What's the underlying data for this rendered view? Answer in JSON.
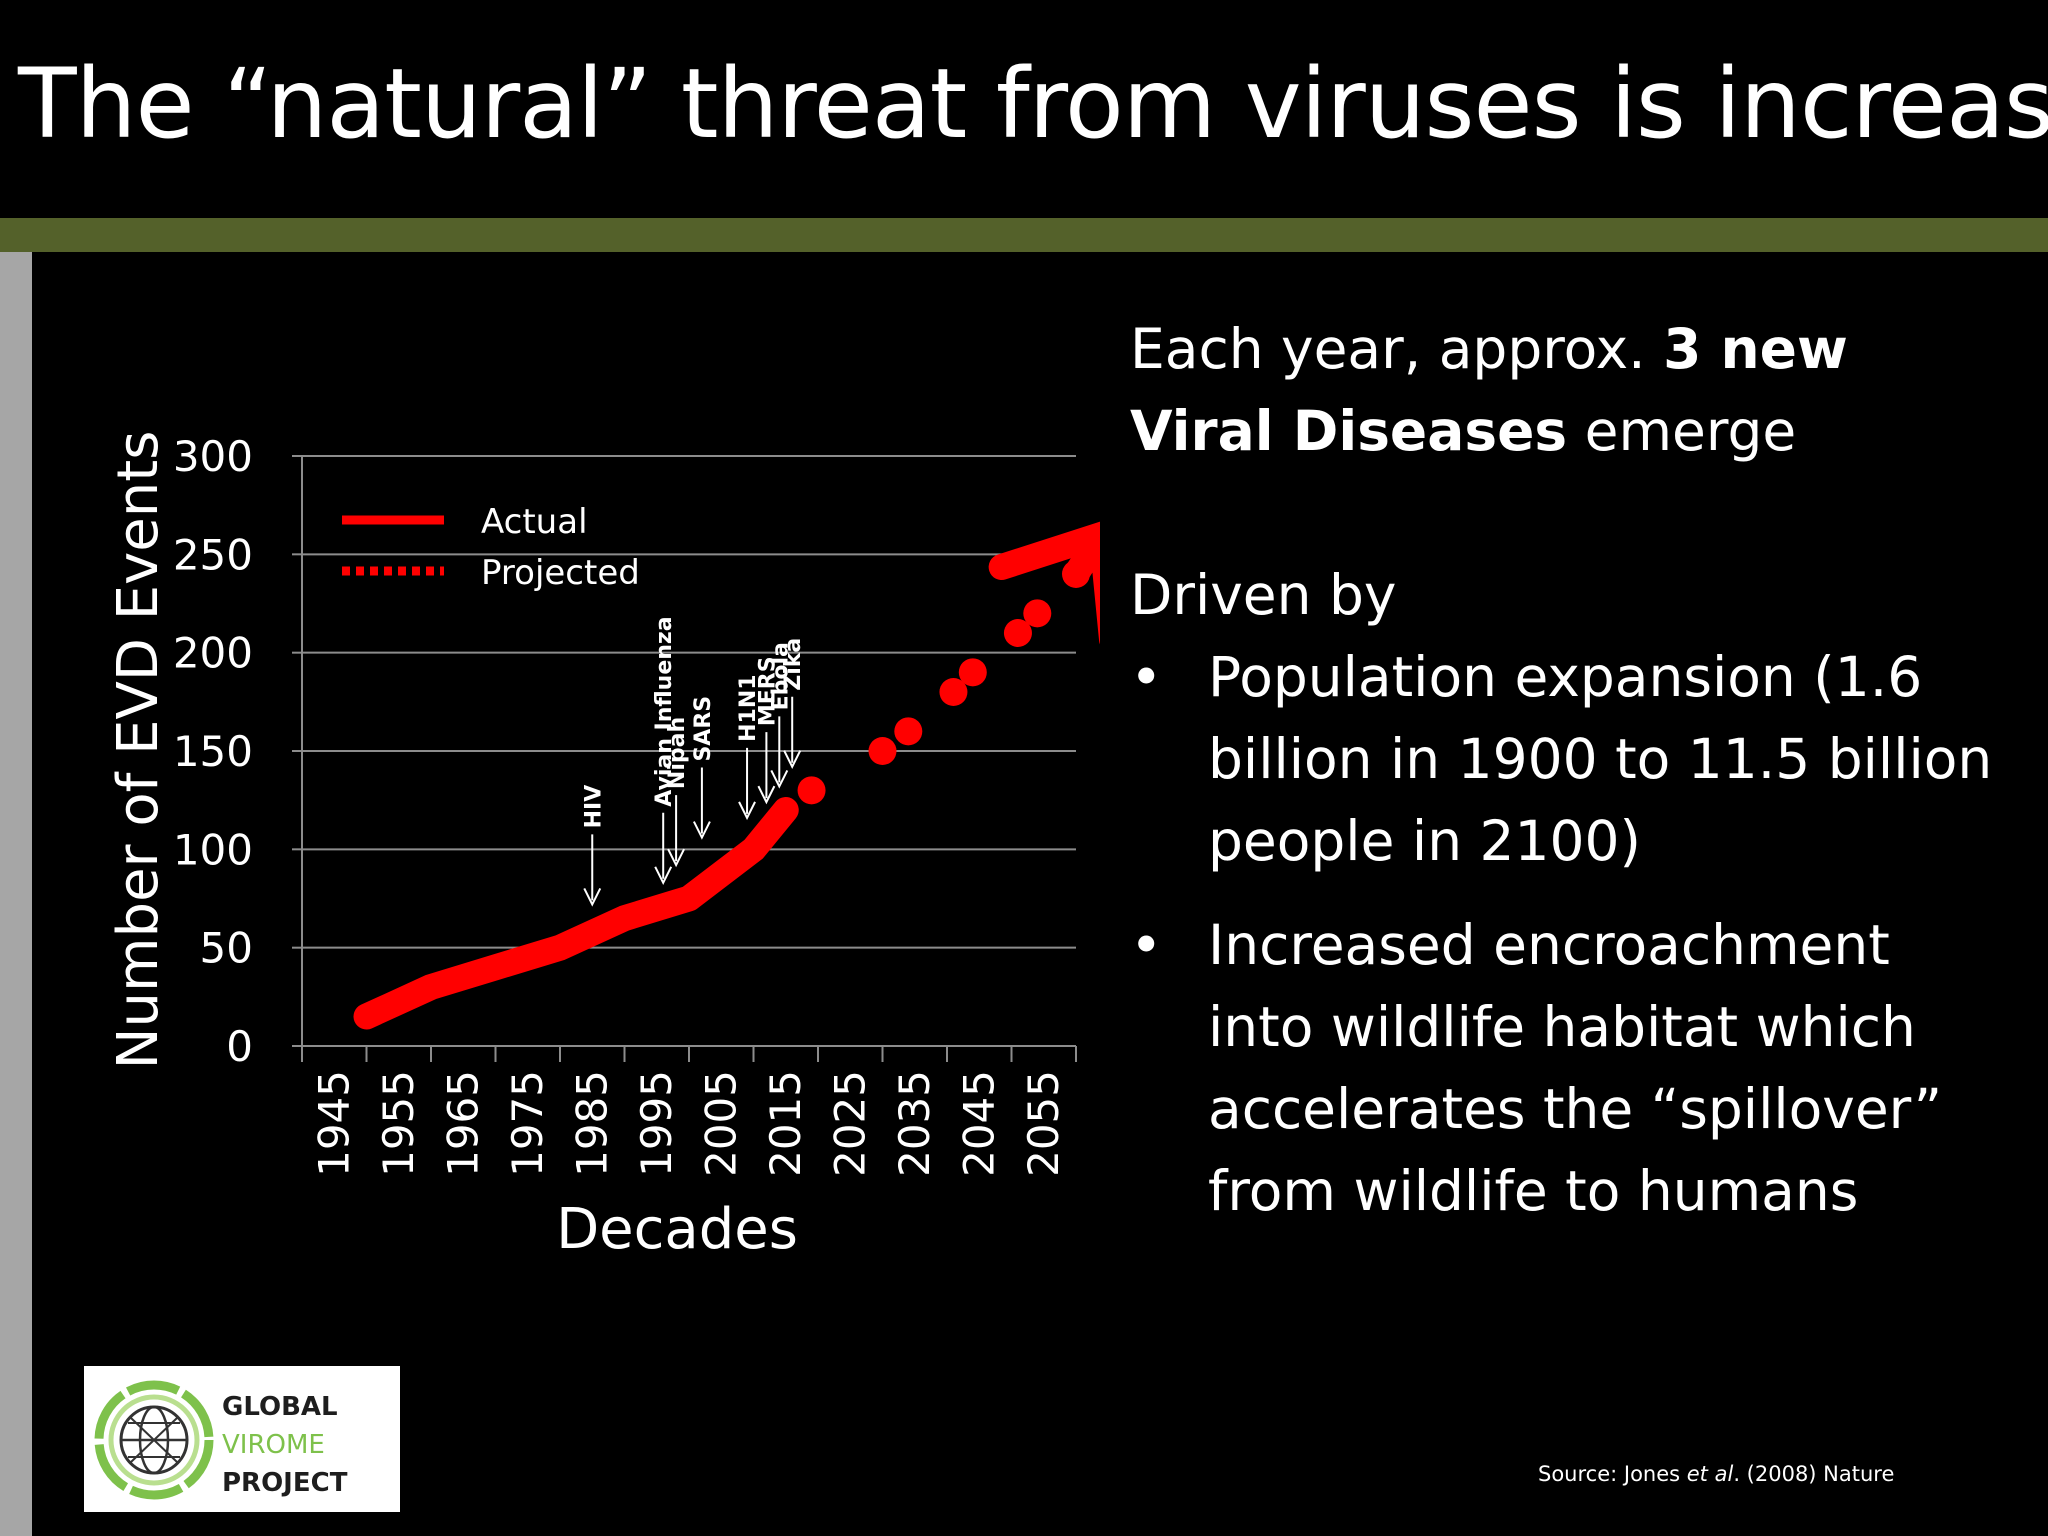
{
  "slide": {
    "title": "The “natural” threat from viruses is increasing",
    "colors": {
      "background": "#000000",
      "accent_band": "#54612a",
      "side_stripe": "#a6a6a6",
      "series": "#ff0000",
      "logo_green": "#7ec14b"
    }
  },
  "chart_data": {
    "type": "line",
    "xlabel": "Decades",
    "ylabel": "Number of EVD Events",
    "ylim": [
      0,
      300
    ],
    "yticks": [
      0,
      50,
      100,
      150,
      200,
      250,
      300
    ],
    "x_tick_labels": [
      "1945",
      "1955",
      "1965",
      "1975",
      "1985",
      "1995",
      "2005",
      "2015",
      "2025",
      "2035",
      "2045",
      "2055"
    ],
    "grid": true,
    "legend_position": "top-left",
    "series": [
      {
        "name": "Actual",
        "style": "solid",
        "x": [
          1950,
          1960,
          1970,
          1980,
          1990,
          2000,
          2010,
          2015
        ],
        "y": [
          15,
          30,
          40,
          50,
          65,
          75,
          100,
          120
        ]
      },
      {
        "name": "Projected",
        "style": "dotted",
        "x": [
          2019,
          2030,
          2034,
          2041,
          2044,
          2051,
          2054,
          2060
        ],
        "y": [
          130,
          150,
          160,
          180,
          190,
          210,
          220,
          240
        ]
      }
    ],
    "arrow_tip": {
      "x": 2064,
      "y": 260
    },
    "annotations": [
      {
        "label": "HIV",
        "x": 1985,
        "y": 72
      },
      {
        "label": "Avian Influenza",
        "x": 1996,
        "y": 83
      },
      {
        "label": "Nipah",
        "x": 1998,
        "y": 92
      },
      {
        "label": "SARS",
        "x": 2002,
        "y": 106
      },
      {
        "label": "H1N1",
        "x": 2009,
        "y": 116
      },
      {
        "label": "MERS",
        "x": 2012,
        "y": 124
      },
      {
        "label": "Ebola",
        "x": 2014,
        "y": 132
      },
      {
        "label": "Zika",
        "x": 2016,
        "y": 142
      }
    ]
  },
  "text_panel": {
    "intro_plain": "Each year,  approx. ",
    "intro_bold": "3 new Viral Diseases",
    "intro_end": "  emerge",
    "driven_by": "Driven by",
    "bullet_symbol": "•",
    "bullets": [
      "Population expansion (1.6 billion in 1900 to 11.5 billion people in 2100)",
      "Increased encroachment into wildlife habitat which accelerates the “spillover” from wildlife to humans"
    ]
  },
  "logo": {
    "line1": "GLOBAL",
    "line2": "VIROME",
    "line3": "PROJECT"
  },
  "source": {
    "prefix": "Source: Jones ",
    "italic": "et al",
    "suffix": ". (2008) Nature"
  }
}
